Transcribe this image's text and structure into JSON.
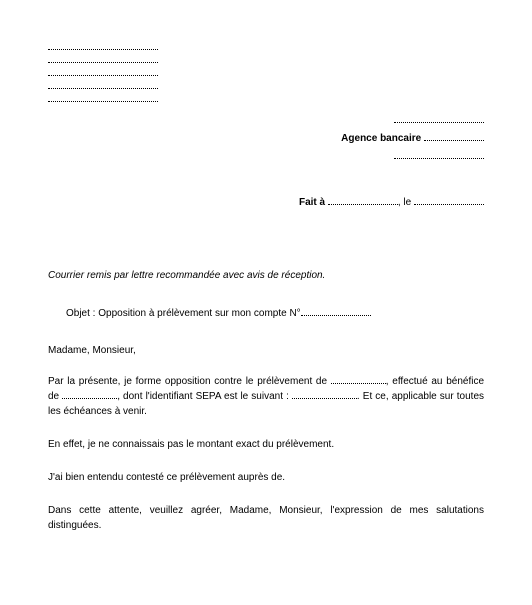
{
  "recipient": {
    "line1_prefix": "Agence bancaire"
  },
  "place_date": {
    "prefix": "Fait à",
    "sep": ", le"
  },
  "notice": "Courrier remis par lettre recommandée avec avis de réception.",
  "subject": {
    "label": "Objet :",
    "text": "Opposition à prélèvement sur mon compte N°"
  },
  "salutation": "Madame, Monsieur,",
  "p1": {
    "a": "Par la présente, je forme opposition contre le prélèvement de",
    "b": ", effectué au bénéfice de",
    "c": ", dont l'identifiant SEPA est le suivant :",
    "d": ". Et ce, applicable sur toutes les échéances à venir."
  },
  "p2": "En effet, je ne connaissais pas le montant exact du prélèvement.",
  "p3": "J'ai bien entendu contesté ce prélèvement auprès de.",
  "p4": "Dans cette attente, veuillez agréer, Madame, Monsieur, l'expression de mes salutations distinguées."
}
